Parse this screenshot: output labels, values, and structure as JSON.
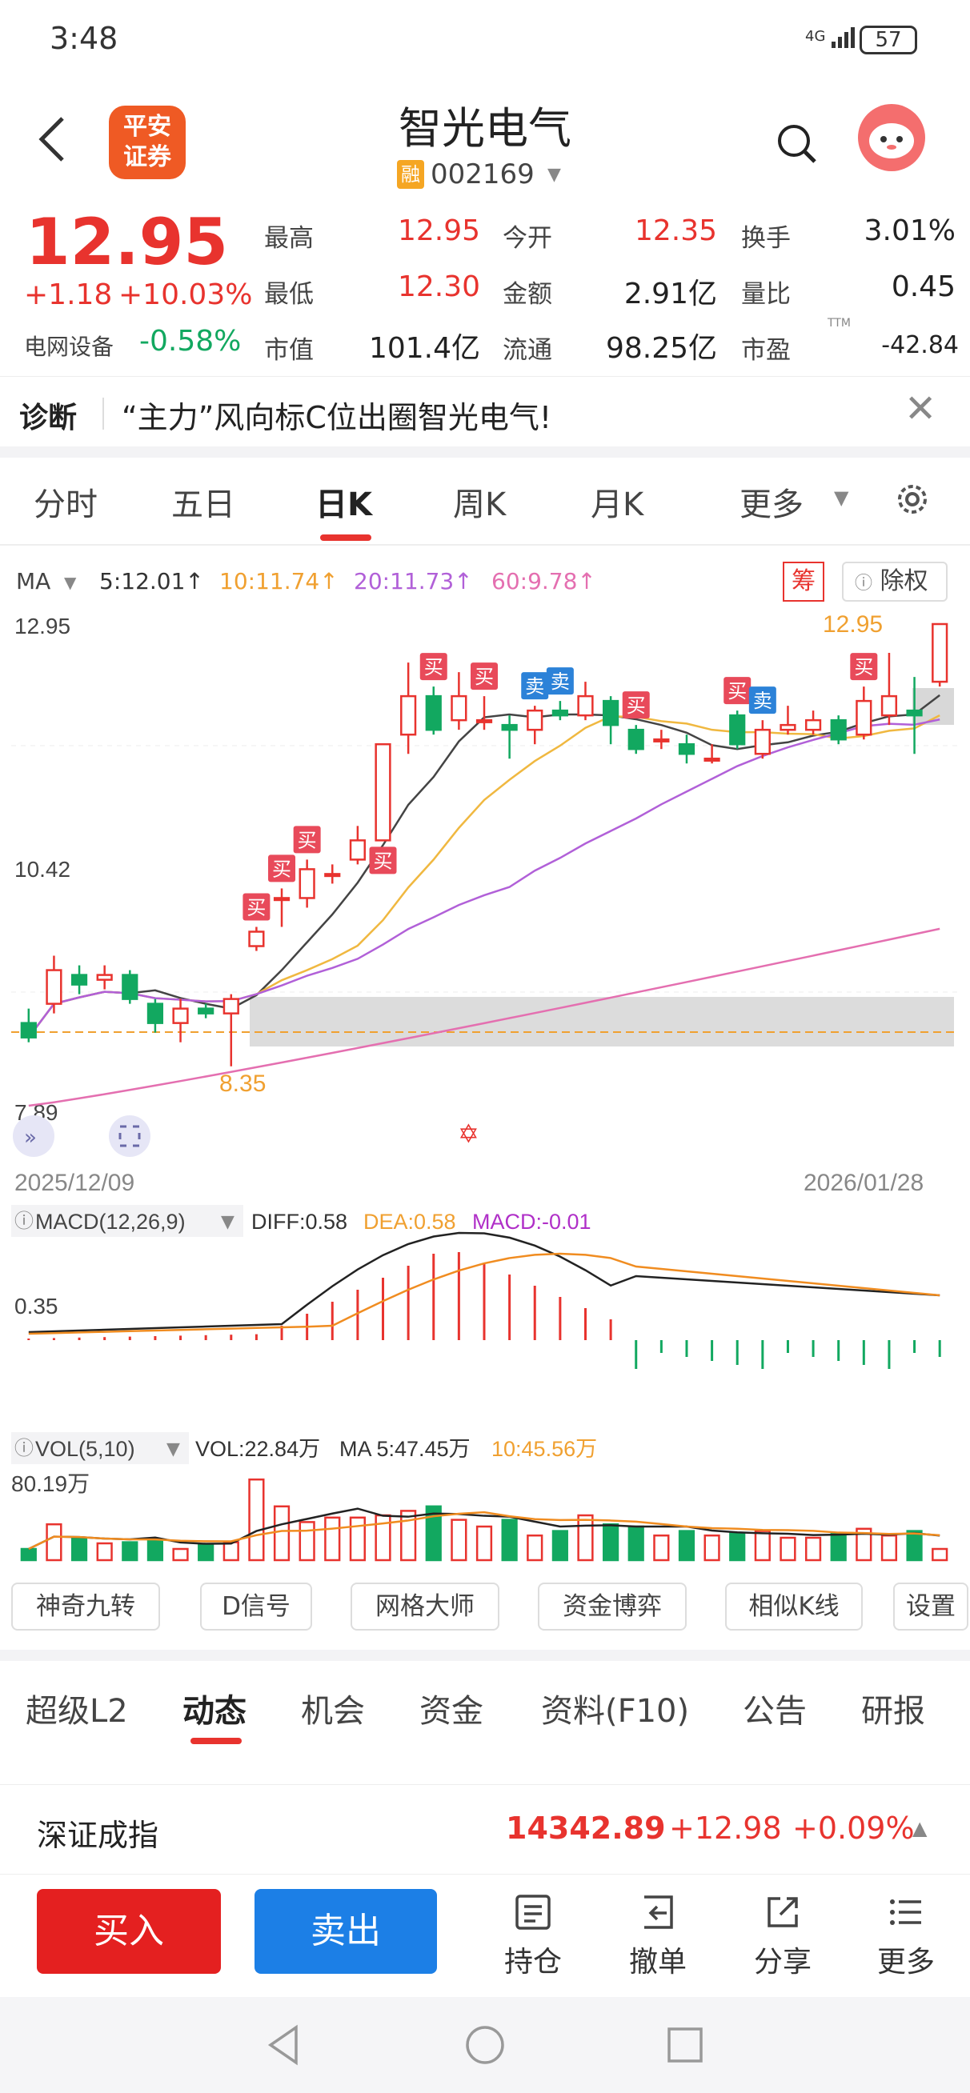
{
  "status": {
    "time": "3:48",
    "signal": "4G",
    "battery": "57"
  },
  "header": {
    "logo_line1": "平安",
    "logo_line2": "证券",
    "name": "智光电气",
    "rong": "融",
    "code": "002169"
  },
  "quote": {
    "price": "12.95",
    "change": "+1.18",
    "change_pct": "+10.03%",
    "sector": "电网设备",
    "sector_chg": "-0.58%",
    "fields": [
      {
        "label": "最高",
        "value": "12.95"
      },
      {
        "label": "今开",
        "value": "12.35"
      },
      {
        "label": "换手",
        "value": "3.01%"
      },
      {
        "label": "最低",
        "value": "12.30"
      },
      {
        "label": "金额",
        "value": "2.91亿"
      },
      {
        "label": "量比",
        "value": "0.45"
      },
      {
        "label": "市值",
        "value": "101.4亿"
      },
      {
        "label": "流通",
        "value": "98.25亿"
      },
      {
        "label": "市盈",
        "value": "-42.84",
        "sup": "TTM"
      }
    ]
  },
  "diagnosis": {
    "label": "诊断",
    "text": "“主力”风向标C位出圈智光电气!"
  },
  "ktabs": [
    "分时",
    "五日",
    "日K",
    "周K",
    "月K",
    "更多"
  ],
  "ma": {
    "label": "MA",
    "ma5": "5:12.01↑",
    "ma10": "10:11.74↑",
    "ma20": "20:11.73↑",
    "ma60": "60:9.78↑",
    "chip": "筹",
    "fuquan": "除权"
  },
  "kline_axis": {
    "high": "12.95",
    "mid": "10.42",
    "low": "7.89",
    "date_start": "2025/12/09",
    "date_end": "2026/01/28",
    "max_label": "12.95",
    "min_label": "8.35"
  },
  "markers": {
    "buy": "买",
    "sell": "卖"
  },
  "macd": {
    "title": "MACD(12,26,9)",
    "diff": "DIFF:0.58",
    "dea": "DEA:0.58",
    "macd": "MACD:-0.01",
    "axis": "0.35"
  },
  "vol": {
    "title": "VOL(5,10)",
    "vol": "VOL:22.84万",
    "ma5": "MA 5:47.45万",
    "ma10": "10:45.56万",
    "axis": "80.19万"
  },
  "tools": [
    "神奇九转",
    "D信号",
    "网格大师",
    "资金博弈",
    "相似K线",
    "设置"
  ],
  "info_tabs": [
    "超级L2",
    "动态",
    "机会",
    "资金",
    "资料(F10)",
    "公告",
    "研报"
  ],
  "index": {
    "name": "深证成指",
    "value": "14342.89",
    "change": "+12.98",
    "pct": "+0.09%"
  },
  "trade": {
    "buy": "买入",
    "sell": "卖出",
    "hold": "持仓",
    "cancel": "撤单",
    "share": "分享",
    "more": "更多"
  },
  "chart_data": {
    "type": "candlestick",
    "x_range": [
      "2025/12/09",
      "2026/01/28"
    ],
    "ylim": [
      7.89,
      12.95
    ],
    "candles": [
      {
        "o": 8.8,
        "c": 8.65,
        "h": 8.95,
        "l": 8.6
      },
      {
        "o": 9.0,
        "c": 9.35,
        "h": 9.5,
        "l": 8.9
      },
      {
        "o": 9.3,
        "c": 9.2,
        "h": 9.4,
        "l": 9.1
      },
      {
        "o": 9.25,
        "c": 9.3,
        "h": 9.4,
        "l": 9.15
      },
      {
        "o": 9.3,
        "c": 9.05,
        "h": 9.35,
        "l": 9.0
      },
      {
        "o": 9.0,
        "c": 8.8,
        "h": 9.05,
        "l": 8.7
      },
      {
        "o": 8.8,
        "c": 8.95,
        "h": 9.05,
        "l": 8.6
      },
      {
        "o": 8.95,
        "c": 8.9,
        "h": 9.0,
        "l": 8.85
      },
      {
        "o": 8.9,
        "c": 9.05,
        "h": 9.1,
        "l": 8.35
      },
      {
        "o": 9.6,
        "c": 9.75,
        "h": 9.8,
        "l": 9.55
      },
      {
        "o": 10.1,
        "c": 10.1,
        "h": 10.2,
        "l": 9.8
      },
      {
        "o": 10.1,
        "c": 10.4,
        "h": 10.5,
        "l": 10.0
      },
      {
        "o": 10.35,
        "c": 10.35,
        "h": 10.45,
        "l": 10.25
      },
      {
        "o": 10.5,
        "c": 10.7,
        "h": 10.85,
        "l": 10.45
      },
      {
        "o": 10.7,
        "c": 11.7,
        "h": 11.7,
        "l": 10.7
      },
      {
        "o": 11.8,
        "c": 12.2,
        "h": 12.55,
        "l": 11.6
      },
      {
        "o": 12.2,
        "c": 11.85,
        "h": 12.3,
        "l": 11.8
      },
      {
        "o": 11.95,
        "c": 12.2,
        "h": 12.45,
        "l": 11.85
      },
      {
        "o": 11.95,
        "c": 11.95,
        "h": 12.2,
        "l": 11.85
      },
      {
        "o": 11.9,
        "c": 11.85,
        "h": 12.0,
        "l": 11.55
      },
      {
        "o": 11.85,
        "c": 12.05,
        "h": 12.1,
        "l": 11.7
      },
      {
        "o": 12.05,
        "c": 12.0,
        "h": 12.15,
        "l": 11.95
      },
      {
        "o": 12.0,
        "c": 12.2,
        "h": 12.35,
        "l": 11.95
      },
      {
        "o": 12.15,
        "c": 11.9,
        "h": 12.2,
        "l": 11.7
      },
      {
        "o": 11.85,
        "c": 11.65,
        "h": 11.9,
        "l": 11.6
      },
      {
        "o": 11.75,
        "c": 11.75,
        "h": 11.85,
        "l": 11.65
      },
      {
        "o": 11.7,
        "c": 11.6,
        "h": 11.8,
        "l": 11.5
      },
      {
        "o": 11.55,
        "c": 11.55,
        "h": 11.7,
        "l": 11.5
      },
      {
        "o": 12.0,
        "c": 11.7,
        "h": 12.05,
        "l": 11.65
      },
      {
        "o": 11.6,
        "c": 11.85,
        "h": 11.95,
        "l": 11.55
      },
      {
        "o": 11.85,
        "c": 11.9,
        "h": 12.1,
        "l": 11.8
      },
      {
        "o": 11.85,
        "c": 11.95,
        "h": 12.05,
        "l": 11.8
      },
      {
        "o": 11.95,
        "c": 11.75,
        "h": 12.0,
        "l": 11.7
      },
      {
        "o": 11.8,
        "c": 12.15,
        "h": 12.3,
        "l": 11.75
      },
      {
        "o": 12.0,
        "c": 12.2,
        "h": 12.65,
        "l": 11.9
      },
      {
        "o": 12.05,
        "c": 12.0,
        "h": 12.4,
        "l": 11.6
      },
      {
        "o": 12.35,
        "c": 12.95,
        "h": 12.95,
        "l": 12.3
      }
    ]
  }
}
